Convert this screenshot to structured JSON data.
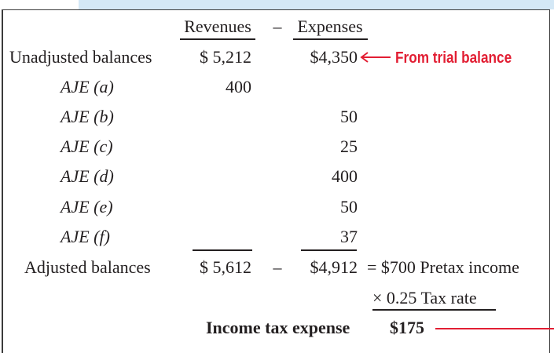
{
  "header": {
    "revenues": "Revenues",
    "minus": "–",
    "expenses": "Expenses"
  },
  "rows": [
    {
      "label": "Unadjusted balances",
      "revenue": "$ 5,212",
      "expense": "$4,350"
    },
    {
      "label": "AJE (a)",
      "revenue": "400",
      "expense": ""
    },
    {
      "label": "AJE (b)",
      "revenue": "",
      "expense": "50"
    },
    {
      "label": "AJE (c)",
      "revenue": "",
      "expense": "25"
    },
    {
      "label": "AJE (d)",
      "revenue": "",
      "expense": "400"
    },
    {
      "label": "AJE (e)",
      "revenue": "",
      "expense": "50"
    },
    {
      "label": "AJE (f)",
      "revenue": "",
      "expense": "37"
    }
  ],
  "callout": "From trial balance",
  "adjusted": {
    "label": "Adjusted balances",
    "revenue": "$ 5,612",
    "minus": "–",
    "expense": "$4,912",
    "result": "= $700 Pretax income"
  },
  "tax_rate": "× 0.25 Tax rate",
  "tax_expense": {
    "label": "Income tax expense",
    "value": "$175"
  },
  "colors": {
    "accent_red": "#e21e33",
    "band_blue": "#d4e8f6",
    "text": "#231f20"
  }
}
